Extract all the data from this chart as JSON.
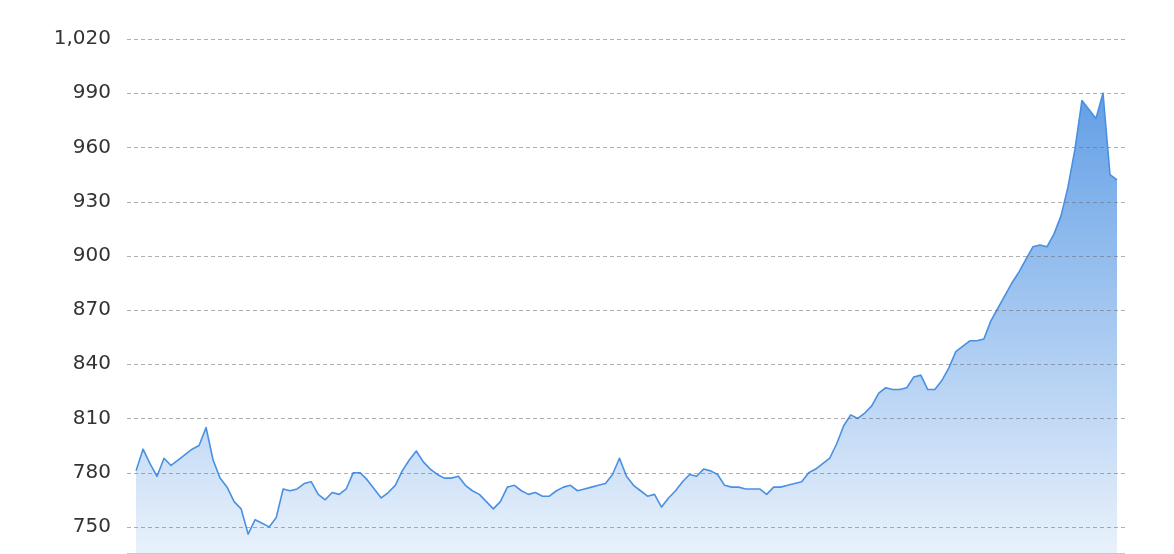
{
  "chart_data": {
    "type": "area",
    "categories": [
      null,
      null,
      null,
      null,
      null,
      null,
      null,
      null,
      null,
      null,
      null,
      null,
      null,
      null,
      null,
      null,
      null,
      null,
      null,
      null,
      null,
      null,
      null,
      null,
      null,
      null,
      null,
      null,
      null,
      null,
      null,
      null,
      null,
      null,
      null,
      null,
      null,
      null,
      null,
      null,
      null,
      null,
      null,
      null,
      null,
      null,
      null,
      null,
      null,
      null,
      null,
      null,
      null,
      null,
      null,
      null,
      null,
      null,
      null,
      null,
      null,
      null,
      null,
      null,
      null,
      null,
      null,
      null,
      null,
      null,
      null,
      null,
      null,
      null,
      null,
      null,
      null,
      null,
      null,
      null,
      null,
      null,
      null,
      null,
      null,
      null,
      null,
      null,
      null,
      null,
      null,
      null,
      null,
      null,
      null,
      null,
      null,
      null,
      null,
      null,
      null,
      null,
      null,
      null,
      null,
      null,
      null,
      null,
      null,
      null,
      null,
      null,
      null,
      null,
      null,
      null,
      null,
      null,
      null,
      null,
      null,
      null,
      null,
      null,
      null,
      null,
      null,
      null,
      null,
      null,
      null,
      null,
      null,
      null,
      null,
      null,
      null,
      null,
      null,
      null,
      null
    ],
    "values": [
      781,
      793,
      785,
      778,
      788,
      784,
      787,
      790,
      793,
      795,
      805,
      787,
      777,
      772,
      764,
      760,
      746,
      754,
      752,
      750,
      755,
      771,
      770,
      771,
      774,
      775,
      768,
      765,
      769,
      768,
      771,
      780,
      780,
      776,
      771,
      766,
      769,
      773,
      781,
      787,
      792,
      786,
      782,
      779,
      777,
      777,
      778,
      773,
      770,
      768,
      764,
      760,
      764,
      772,
      773,
      770,
      768,
      769,
      767,
      767,
      770,
      772,
      773,
      770,
      771,
      772,
      773,
      774,
      779,
      788,
      778,
      773,
      770,
      767,
      768,
      761,
      766,
      770,
      775,
      779,
      778,
      782,
      781,
      779,
      773,
      772,
      772,
      771,
      771,
      771,
      768,
      772,
      772,
      773,
      774,
      775,
      780,
      782,
      785,
      788,
      796,
      806,
      812,
      810,
      813,
      817,
      824,
      827,
      826,
      826,
      827,
      833,
      834,
      826,
      826,
      831,
      838,
      847,
      850,
      853,
      853,
      854,
      864,
      871,
      878,
      885,
      891,
      898,
      905,
      906,
      905,
      912,
      922,
      938,
      959,
      986,
      981,
      976,
      990,
      945,
      942
    ],
    "color": "#4a90e2",
    "ylim": [
      735,
      1020
    ],
    "yticks": [
      750,
      780,
      810,
      840,
      870,
      900,
      930,
      960,
      990,
      {
        "value": 1020,
        "label": "1,020"
      }
    ],
    "grid": "y",
    "legend": false
  }
}
